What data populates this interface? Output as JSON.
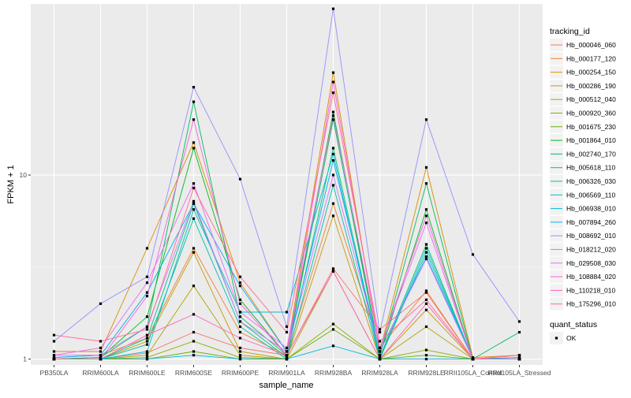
{
  "chart_data": {
    "type": "line",
    "xlabel": "sample_name",
    "ylabel": "FPKM + 1",
    "y_scale": "log10",
    "ylim": [
      0.93,
      85
    ],
    "y_ticks": [
      {
        "value": 1,
        "label": "1"
      },
      {
        "value": 10,
        "label": "10"
      }
    ],
    "grid": true,
    "legend_position": "right",
    "categories": [
      "PB350LA",
      "RRIM600LA",
      "RRIM600LE",
      "RRIM600SE",
      "RRIM600PE",
      "RRIM901LA",
      "RRIM928BA",
      "RRIM928LA",
      "RRIM928LE",
      "RRII105LA_Control",
      "RRII105LA_Stressed"
    ],
    "colour_legend": {
      "title": "tracking_id",
      "entries": [
        {
          "name": "Hb_000046_060",
          "color": "#F8766D"
        },
        {
          "name": "Hb_000177_120",
          "color": "#EC8239"
        },
        {
          "name": "Hb_000254_150",
          "color": "#DB8E00"
        },
        {
          "name": "Hb_000286_190",
          "color": "#C79800"
        },
        {
          "name": "Hb_000512_040",
          "color": "#AEA200"
        },
        {
          "name": "Hb_000920_360",
          "color": "#8FAA00"
        },
        {
          "name": "Hb_001675_230",
          "color": "#64B200"
        },
        {
          "name": "Hb_001864_010",
          "color": "#00B81B"
        },
        {
          "name": "Hb_002740_170",
          "color": "#00BD5C"
        },
        {
          "name": "Hb_005618_110",
          "color": "#00C085"
        },
        {
          "name": "Hb_006326_030",
          "color": "#00C1A7"
        },
        {
          "name": "Hb_006569_110",
          "color": "#00BFC4"
        },
        {
          "name": "Hb_006938_010",
          "color": "#00BADE"
        },
        {
          "name": "Hb_007894_260",
          "color": "#00B0F6"
        },
        {
          "name": "Hb_008692_010",
          "color": "#9590FF"
        },
        {
          "name": "Hb_018212_020",
          "color": "#C77CFF"
        },
        {
          "name": "Hb_029508_030",
          "color": "#E76BF3"
        },
        {
          "name": "Hb_108884_020",
          "color": "#FA62DB"
        },
        {
          "name": "Hb_110218_010",
          "color": "#FF62BC"
        },
        {
          "name": "Hb_175296_010",
          "color": "#FF6C91"
        }
      ]
    },
    "shape_legend": {
      "title": "quant_status",
      "entries": [
        {
          "name": "OK",
          "shape": "square"
        }
      ]
    },
    "series": [
      {
        "name": "Hb_000046_060",
        "values": [
          1.0,
          1.0,
          1.08,
          1.4,
          1.15,
          1.05,
          3.1,
          1.45,
          2.3,
          1.0,
          1.0
        ]
      },
      {
        "name": "Hb_000177_120",
        "values": [
          1.02,
          1.05,
          1.3,
          4.0,
          1.4,
          1.05,
          7.0,
          1.15,
          2.35,
          1.0,
          1.05
        ]
      },
      {
        "name": "Hb_000254_150",
        "values": [
          1.1,
          1.1,
          4.0,
          15.0,
          2.6,
          1.1,
          36.0,
          1.1,
          11.0,
          1.02,
          1.05
        ]
      },
      {
        "name": "Hb_000286_190",
        "values": [
          1.0,
          1.0,
          1.25,
          3.8,
          1.1,
          1.0,
          6.0,
          1.0,
          1.85,
          1.0,
          1.0
        ]
      },
      {
        "name": "Hb_000512_040",
        "values": [
          1.0,
          1.0,
          1.05,
          2.5,
          1.05,
          1.0,
          3.0,
          1.0,
          1.5,
          1.0,
          1.0
        ]
      },
      {
        "name": "Hb_000920_360",
        "values": [
          1.0,
          1.0,
          1.02,
          1.25,
          1.02,
          1.0,
          1.55,
          1.0,
          1.12,
          1.0,
          1.0
        ]
      },
      {
        "name": "Hb_001675_230",
        "values": [
          1.0,
          1.0,
          1.0,
          1.1,
          1.0,
          1.0,
          1.45,
          1.0,
          1.05,
          1.0,
          1.0
        ]
      },
      {
        "name": "Hb_001864_010",
        "values": [
          1.0,
          1.02,
          1.7,
          14.0,
          2.1,
          1.05,
          22.0,
          1.05,
          6.5,
          1.0,
          1.02
        ]
      },
      {
        "name": "Hb_002740_170",
        "values": [
          1.0,
          1.02,
          1.5,
          25.0,
          1.7,
          1.05,
          20.0,
          1.05,
          9.0,
          1.0,
          1.4
        ]
      },
      {
        "name": "Hb_005618_110",
        "values": [
          1.0,
          1.0,
          1.3,
          7.0,
          1.6,
          1.02,
          14.0,
          1.02,
          4.2,
          1.0,
          1.0
        ]
      },
      {
        "name": "Hb_006326_030",
        "values": [
          1.0,
          1.0,
          1.2,
          5.8,
          1.5,
          1.0,
          8.8,
          1.0,
          3.8,
          1.0,
          1.0
        ]
      },
      {
        "name": "Hb_006569_110",
        "values": [
          1.0,
          1.0,
          1.1,
          6.5,
          1.8,
          1.8,
          13.0,
          1.0,
          4.0,
          1.0,
          1.0
        ]
      },
      {
        "name": "Hb_006938_010",
        "values": [
          1.0,
          1.0,
          1.0,
          1.05,
          1.0,
          1.0,
          1.18,
          1.0,
          1.0,
          1.0,
          1.0
        ]
      },
      {
        "name": "Hb_007894_260",
        "values": [
          1.02,
          1.05,
          2.3,
          7.0,
          2.5,
          1.1,
          12.0,
          1.1,
          3.6,
          1.0,
          1.02
        ]
      },
      {
        "name": "Hb_008692_010",
        "values": [
          1.25,
          2.0,
          2.8,
          30.0,
          9.5,
          1.5,
          80.0,
          1.4,
          20.0,
          3.7,
          1.6
        ]
      },
      {
        "name": "Hb_018212_020",
        "values": [
          1.05,
          1.05,
          1.5,
          7.2,
          1.6,
          1.1,
          10.0,
          1.1,
          3.5,
          1.0,
          1.0
        ]
      },
      {
        "name": "Hb_029508_030",
        "values": [
          1.05,
          1.15,
          2.6,
          9.0,
          1.8,
          1.15,
          21.0,
          1.15,
          5.5,
          1.0,
          1.0
        ]
      },
      {
        "name": "Hb_108884_020",
        "values": [
          1.0,
          1.0,
          2.2,
          20.0,
          2.0,
          1.05,
          32.0,
          1.15,
          6.0,
          1.0,
          1.0
        ]
      },
      {
        "name": "Hb_110218_010",
        "values": [
          1.0,
          1.0,
          1.35,
          1.75,
          1.3,
          1.05,
          3.0,
          1.0,
          2.0,
          1.0,
          1.0
        ]
      },
      {
        "name": "Hb_175296_010",
        "values": [
          1.35,
          1.25,
          1.45,
          8.5,
          2.8,
          1.4,
          28.0,
          1.25,
          2.1,
          1.0,
          1.05
        ]
      }
    ]
  }
}
